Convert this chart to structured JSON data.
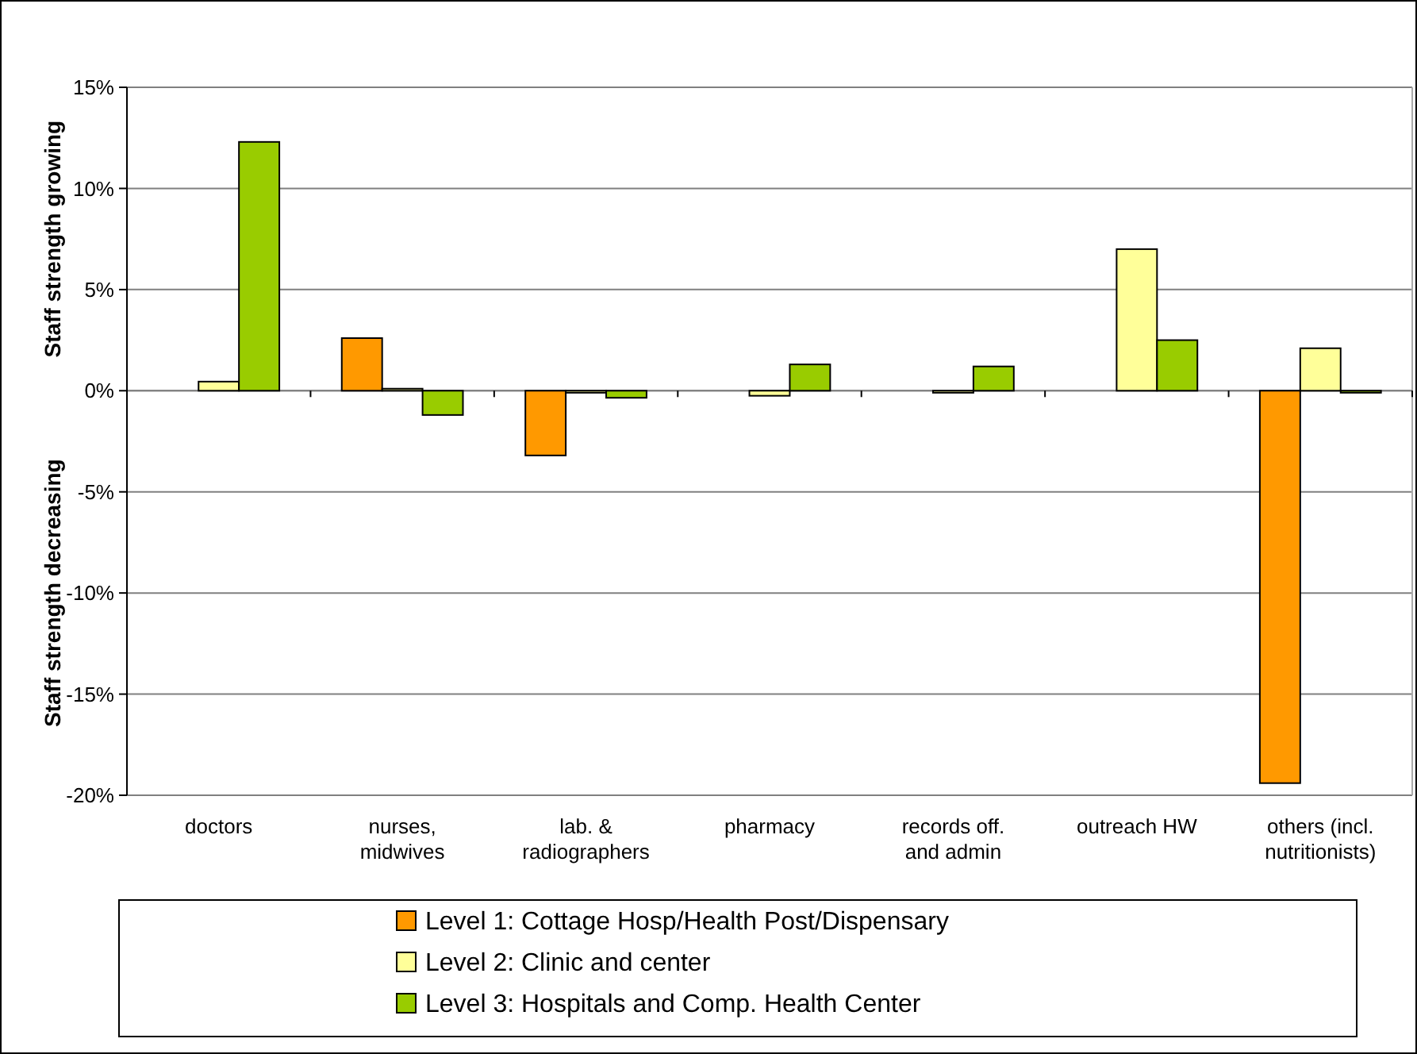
{
  "chart_data": {
    "type": "bar",
    "ylabel": "Staff strength growing",
    "annotations": [
      "Staff strength decreasing"
    ],
    "categories": [
      "doctors",
      "nurses, midwives",
      "lab. & radiographers",
      "pharmacy",
      "records off. and admin",
      "outreach HW",
      "others (incl. nutritionists)"
    ],
    "series": [
      {
        "name": "Level 1: Cottage Hosp/Health Post/Dispensary",
        "color": "#ff9900",
        "values": [
          null,
          2.6,
          -3.2,
          null,
          null,
          null,
          -19.4
        ]
      },
      {
        "name": "Level 2: Clinic and center",
        "color": "#ffff99",
        "values": [
          0.45,
          0.1,
          -0.1,
          -0.25,
          -0.1,
          7.0,
          2.1
        ]
      },
      {
        "name": "Level 3: Hospitals and Comp. Health Center",
        "color": "#99cc00",
        "values": [
          12.3,
          -1.2,
          -0.35,
          1.3,
          1.2,
          2.5,
          -0.1
        ]
      }
    ],
    "ylim": [
      -20,
      15
    ],
    "yticks": [
      {
        "value": -20,
        "label": "-20%"
      },
      {
        "value": -15,
        "label": "-15%"
      },
      {
        "value": -10,
        "label": "-10%"
      },
      {
        "value": -5,
        "label": "-5%"
      },
      {
        "value": 0,
        "label": "0%"
      },
      {
        "value": 5,
        "label": "5%"
      },
      {
        "value": 10,
        "label": "10%"
      },
      {
        "value": 15,
        "label": "15%"
      }
    ],
    "grid": "y",
    "legend": "bottom"
  }
}
